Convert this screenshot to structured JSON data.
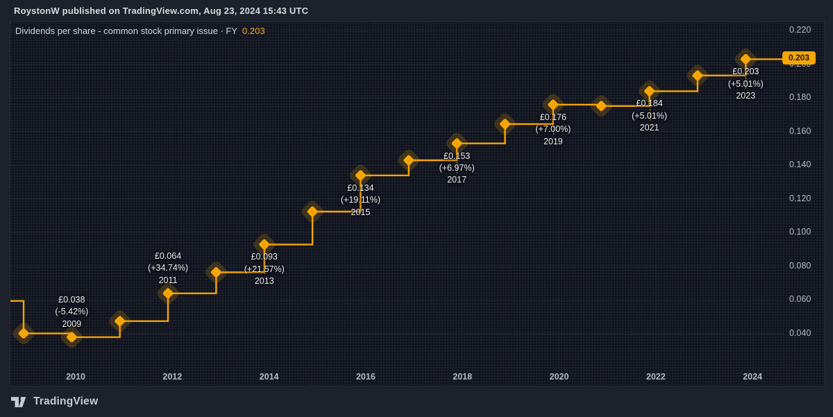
{
  "header": {
    "attribution": "RoystonW published on TradingView.com, Aug 23, 2024 15:43 UTC"
  },
  "chart": {
    "title": "Dividends per share - common stock primary issue · FY",
    "title_value": "0.203",
    "last_value_label": "0.203",
    "accent_color": "#f7a600"
  },
  "chart_data": {
    "type": "line",
    "line_style": "step",
    "marker": "diamond",
    "title": "Dividends per share - common stock primary issue · FY",
    "currency": "£",
    "xlabel": "",
    "ylabel": "",
    "grid": true,
    "legend": false,
    "axis_position": "right",
    "xlim": [
      2007.7,
      2023.8
    ],
    "ylim": [
      0.02,
      0.225
    ],
    "x_ticks": [
      2010,
      2012,
      2014,
      2016,
      2018,
      2020,
      2022,
      2024
    ],
    "y_ticks": [
      "0.220",
      "0.200",
      "0.180",
      "0.160",
      "0.140",
      "0.120",
      "0.100",
      "0.080",
      "0.060",
      "0.040"
    ],
    "last_value": 0.203,
    "series": [
      {
        "name": "Dividends per share - common stock primary issue",
        "x": [
          2007,
          2008,
          2009,
          2010,
          2011,
          2012,
          2013,
          2014,
          2015,
          2016,
          2017,
          2018,
          2019,
          2020,
          2021,
          2022,
          2023
        ],
        "values": [
          0.0595,
          0.0402,
          0.038,
          0.0475,
          0.064,
          0.0765,
          0.093,
          0.1125,
          0.134,
          0.143,
          0.153,
          0.1645,
          0.176,
          0.1752,
          0.184,
          0.1933,
          0.203
        ]
      }
    ],
    "annotations": [
      {
        "year": 2009,
        "lines": [
          "£0.038",
          "(-5.42%)",
          "2009"
        ],
        "position": "above"
      },
      {
        "year": 2011,
        "lines": [
          "£0.064",
          "(+34.74%)",
          "2011"
        ],
        "position": "above"
      },
      {
        "year": 2013,
        "lines": [
          "£0.093",
          "(+21.57%)",
          "2013"
        ],
        "position": "below"
      },
      {
        "year": 2015,
        "lines": [
          "£0.134",
          "(+19.11%)",
          "2015"
        ],
        "position": "below"
      },
      {
        "year": 2017,
        "lines": [
          "£0.153",
          "(+6.97%)",
          "2017"
        ],
        "position": "below"
      },
      {
        "year": 2019,
        "lines": [
          "£0.176",
          "(+7.00%)",
          "2019"
        ],
        "position": "below"
      },
      {
        "year": 2021,
        "lines": [
          "£0.184",
          "(+5.01%)",
          "2021"
        ],
        "position": "below"
      },
      {
        "year": 2023,
        "lines": [
          "£0.203",
          "(+5.01%)",
          "2023"
        ],
        "position": "below"
      }
    ]
  },
  "footer": {
    "brand": "TradingView"
  }
}
